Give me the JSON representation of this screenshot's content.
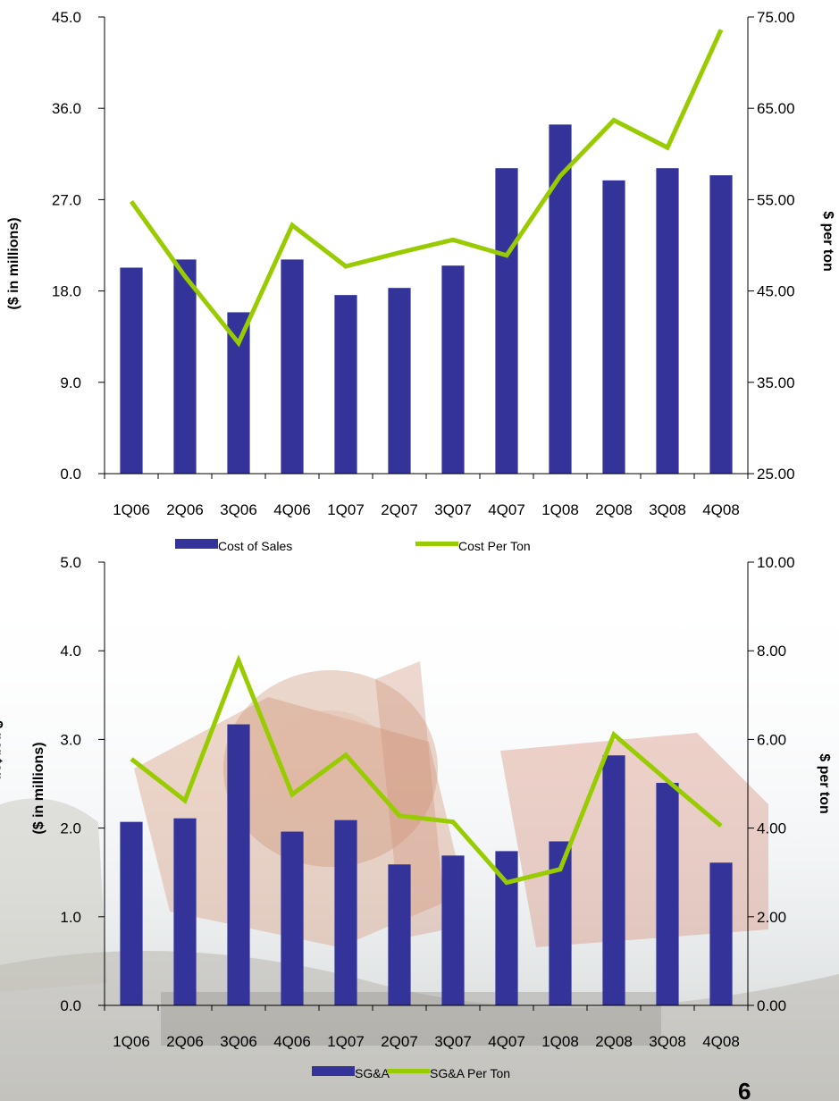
{
  "colors": {
    "bar": "#333399",
    "line": "#99CC00"
  },
  "page_number": "6",
  "chart_data": [
    {
      "type": "bar",
      "categories": [
        "1Q06",
        "2Q06",
        "3Q06",
        "4Q06",
        "1Q07",
        "2Q07",
        "3Q07",
        "4Q07",
        "1Q08",
        "2Q08",
        "3Q08",
        "4Q08"
      ],
      "series": [
        {
          "name": "Cost of Sales",
          "type": "bar",
          "axis": "left",
          "values": [
            20.3,
            21.1,
            15.9,
            21.1,
            17.6,
            18.3,
            20.5,
            30.1,
            34.4,
            28.9,
            30.1,
            29.4
          ]
        },
        {
          "name": "Cost Per Ton",
          "type": "line",
          "axis": "right",
          "values": [
            54.8,
            46.6,
            39.3,
            52.2,
            47.7,
            49.2,
            50.6,
            48.9,
            57.6,
            63.7,
            60.7,
            73.6
          ]
        }
      ],
      "ylabel": "($ in millions)",
      "y2label": "$ per ton",
      "ylim": [
        0,
        45
      ],
      "y2lim": [
        25,
        75
      ],
      "yticks": [
        "0.0",
        "9.0",
        "18.0",
        "27.0",
        "36.0",
        "45.0"
      ],
      "y2ticks": [
        "25.00",
        "35.00",
        "45.00",
        "55.00",
        "65.00",
        "75.00"
      ],
      "legend": "bottom",
      "grid": false
    },
    {
      "type": "bar",
      "categories": [
        "1Q06",
        "2Q06",
        "3Q06",
        "4Q06",
        "1Q07",
        "2Q07",
        "3Q07",
        "4Q07",
        "1Q08",
        "2Q08",
        "3Q08",
        "4Q08"
      ],
      "series": [
        {
          "name": "SG&A",
          "type": "bar",
          "axis": "left",
          "values": [
            2.07,
            2.11,
            3.17,
            1.96,
            2.09,
            1.59,
            1.69,
            1.74,
            1.85,
            2.82,
            2.51,
            1.61
          ]
        },
        {
          "name": "SG&A Per Ton",
          "type": "line",
          "axis": "right",
          "values": [
            5.56,
            4.62,
            7.78,
            4.76,
            5.65,
            4.28,
            4.14,
            2.77,
            3.07,
            6.11,
            5.07,
            4.05
          ]
        }
      ],
      "ylabel": "($ in millions)",
      "y2label": "$ per ton",
      "ylim": [
        0,
        5
      ],
      "y2lim": [
        0,
        10
      ],
      "yticks": [
        "0.0",
        "1.0",
        "2.0",
        "3.0",
        "4.0",
        "5.0"
      ],
      "y2ticks": [
        "0.00",
        "2.00",
        "4.00",
        "6.00",
        "8.00",
        "10.00"
      ],
      "legend": "bottom",
      "grid": false
    }
  ]
}
